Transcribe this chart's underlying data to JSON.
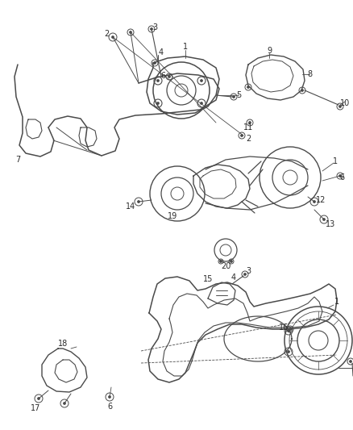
{
  "bg_color": "#ffffff",
  "line_color": "#4a4a4a",
  "text_color": "#2a2a2a",
  "fig_width": 4.38,
  "fig_height": 5.33,
  "dpi": 100
}
